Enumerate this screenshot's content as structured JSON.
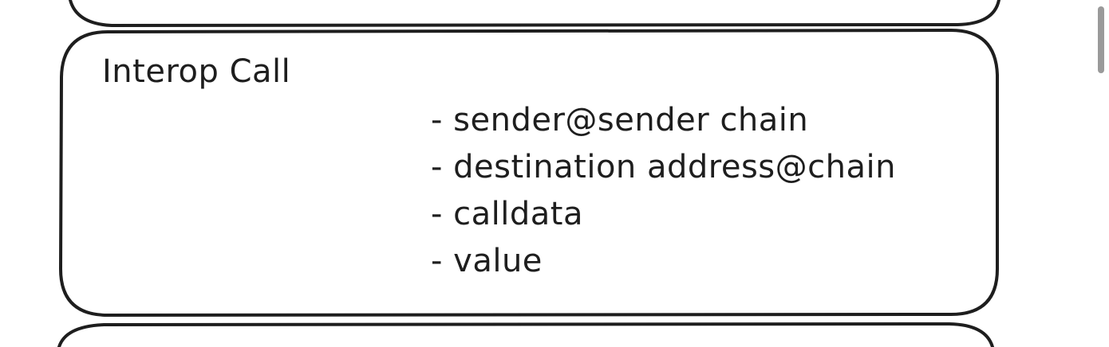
{
  "colors": {
    "stroke": "#1e1e1e",
    "background": "#ffffff",
    "scrollbar": "#9a9a9a"
  },
  "interop_call_box": {
    "title": "Interop Call",
    "fields": [
      "- sender@sender chain",
      "- destination address@chain",
      "- calldata",
      "- value"
    ]
  }
}
